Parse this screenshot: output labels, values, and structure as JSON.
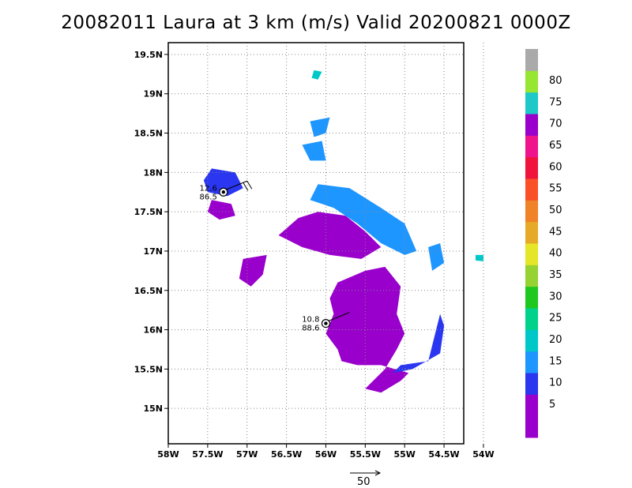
{
  "title": "20082011 Laura at 3 km (m/s) Valid 20200821 0000Z",
  "chart_data": {
    "type": "heatmap",
    "title": "20082011 Laura at 3 km (m/s) Valid 20200821 0000Z",
    "xlim": [
      -58,
      -54.25
    ],
    "ylim": [
      14.55,
      19.65
    ],
    "x_ticks": [
      -58,
      -57.5,
      -57,
      -56.5,
      -56,
      -55.5,
      -55,
      -54.5,
      -54
    ],
    "x_tick_labels": [
      "58W",
      "57.5W",
      "57W",
      "56.5W",
      "56W",
      "55.5W",
      "55W",
      "54.5W",
      "54W"
    ],
    "y_ticks": [
      15,
      15.5,
      16,
      16.5,
      17,
      17.5,
      18,
      18.5,
      19,
      19.5
    ],
    "y_tick_labels": [
      "15N",
      "15.5N",
      "16N",
      "16.5N",
      "17N",
      "17.5N",
      "18N",
      "18.5N",
      "19N",
      "19.5N"
    ],
    "grid": true,
    "colorbar": {
      "labels": [
        "5",
        "10",
        "15",
        "20",
        "25",
        "30",
        "35",
        "40",
        "45",
        "50",
        "55",
        "60",
        "65",
        "70",
        "75",
        "80"
      ],
      "colors": [
        "#9900cc",
        "#9900cc",
        "#2a36f0",
        "#1e96ff",
        "#00c8c8",
        "#00d28c",
        "#1ec81e",
        "#96d232",
        "#e6e628",
        "#e6aa28",
        "#f08228",
        "#fa5028",
        "#f0143c",
        "#f0148c",
        "#9900cc",
        "#1ec8c8",
        "#96e632",
        "#aaaaaa"
      ]
    },
    "storm_markers": [
      {
        "lon": -57.3,
        "lat": 17.75,
        "speed": "12.6",
        "heading": "86.5"
      },
      {
        "lon": -56.0,
        "lat": 16.08,
        "speed": "10.8",
        "heading": "88.6"
      }
    ],
    "wind_regions": [
      {
        "level": "5",
        "polygon": [
          [
            -56.35,
            17.42
          ],
          [
            -56.1,
            17.5
          ],
          [
            -55.75,
            17.45
          ],
          [
            -55.5,
            17.25
          ],
          [
            -55.3,
            17.05
          ],
          [
            -55.55,
            16.9
          ],
          [
            -55.95,
            16.95
          ],
          [
            -56.3,
            17.05
          ],
          [
            -56.6,
            17.2
          ]
        ]
      },
      {
        "level": "5",
        "polygon": [
          [
            -57.05,
            16.9
          ],
          [
            -56.75,
            16.95
          ],
          [
            -56.8,
            16.7
          ],
          [
            -56.95,
            16.55
          ],
          [
            -57.1,
            16.65
          ]
        ]
      },
      {
        "level": "5",
        "polygon": [
          [
            -55.85,
            16.6
          ],
          [
            -55.5,
            16.75
          ],
          [
            -55.25,
            16.8
          ],
          [
            -55.05,
            16.55
          ],
          [
            -55.1,
            16.2
          ],
          [
            -55.0,
            15.95
          ],
          [
            -55.1,
            15.75
          ],
          [
            -55.25,
            15.5
          ],
          [
            -55.4,
            15.35
          ],
          [
            -55.5,
            15.25
          ],
          [
            -55.3,
            15.2
          ],
          [
            -55.05,
            15.35
          ],
          [
            -54.95,
            15.45
          ],
          [
            -55.3,
            15.55
          ],
          [
            -55.6,
            15.55
          ],
          [
            -55.8,
            15.6
          ],
          [
            -55.85,
            15.75
          ],
          [
            -56.0,
            15.95
          ],
          [
            -55.9,
            16.2
          ],
          [
            -55.95,
            16.4
          ]
        ]
      },
      {
        "level": "5",
        "polygon": [
          [
            -57.45,
            17.65
          ],
          [
            -57.2,
            17.6
          ],
          [
            -57.15,
            17.45
          ],
          [
            -57.35,
            17.4
          ],
          [
            -57.5,
            17.5
          ]
        ]
      },
      {
        "level": "10",
        "polygon": [
          [
            -57.45,
            18.05
          ],
          [
            -57.15,
            18.0
          ],
          [
            -57.05,
            17.8
          ],
          [
            -57.25,
            17.7
          ],
          [
            -57.5,
            17.75
          ],
          [
            -57.55,
            17.9
          ]
        ]
      },
      {
        "level": "10",
        "polygon": [
          [
            -54.7,
            15.6
          ],
          [
            -54.55,
            16.2
          ],
          [
            -54.5,
            16.05
          ],
          [
            -54.55,
            15.7
          ],
          [
            -54.9,
            15.5
          ],
          [
            -55.15,
            15.45
          ],
          [
            -55.05,
            15.55
          ]
        ]
      },
      {
        "level": "15",
        "polygon": [
          [
            -56.1,
            17.85
          ],
          [
            -55.7,
            17.8
          ],
          [
            -55.3,
            17.55
          ],
          [
            -55.0,
            17.35
          ],
          [
            -54.85,
            17.0
          ],
          [
            -55.0,
            16.95
          ],
          [
            -55.3,
            17.1
          ],
          [
            -55.6,
            17.35
          ],
          [
            -55.9,
            17.55
          ],
          [
            -56.2,
            17.65
          ]
        ]
      },
      {
        "level": "15",
        "polygon": [
          [
            -56.2,
            18.65
          ],
          [
            -55.95,
            18.7
          ],
          [
            -56.0,
            18.5
          ],
          [
            -56.15,
            18.45
          ]
        ]
      },
      {
        "level": "15",
        "polygon": [
          [
            -56.3,
            18.35
          ],
          [
            -56.05,
            18.4
          ],
          [
            -56.0,
            18.15
          ],
          [
            -56.2,
            18.15
          ]
        ]
      },
      {
        "level": "15",
        "polygon": [
          [
            -54.7,
            17.05
          ],
          [
            -54.55,
            17.1
          ],
          [
            -54.5,
            16.85
          ],
          [
            -54.65,
            16.75
          ]
        ]
      },
      {
        "level": "20",
        "polygon": [
          [
            -56.15,
            19.3
          ],
          [
            -56.05,
            19.28
          ],
          [
            -56.1,
            19.18
          ],
          [
            -56.18,
            19.2
          ]
        ]
      },
      {
        "level": "20",
        "polygon": [
          [
            -54.1,
            16.95
          ],
          [
            -54.0,
            16.95
          ],
          [
            -54.0,
            16.87
          ],
          [
            -54.1,
            16.88
          ]
        ]
      }
    ]
  },
  "scale_arrow_label": "50"
}
